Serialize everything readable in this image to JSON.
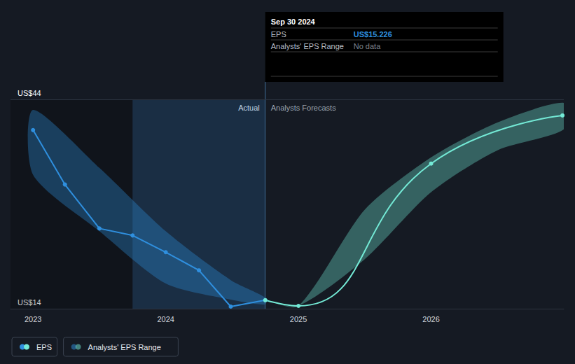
{
  "chart_data": {
    "type": "line",
    "xlim": [
      2022.83,
      2027.0
    ],
    "ylim": [
      14,
      44
    ],
    "xticks": [
      2023,
      2024,
      2025,
      2026
    ],
    "yticks": [
      {
        "value": 14,
        "label": "US$14"
      },
      {
        "value": 44,
        "label": "US$44"
      }
    ],
    "grid": true,
    "legend": "lower left",
    "series": [
      {
        "name": "EPS",
        "type": "line",
        "color": "#2f8fde",
        "marker": "circle",
        "x": [
          2023.0,
          2023.24,
          2023.5,
          2023.75,
          2024.0,
          2024.25,
          2024.49,
          2024.75
        ],
        "values": [
          39.6,
          31.8,
          25.5,
          24.5,
          22.1,
          19.5,
          14.3,
          15.226
        ]
      },
      {
        "name": "EPS",
        "type": "line",
        "color": "#74ead6",
        "marker": "circle",
        "x": [
          2024.75,
          2025.0,
          2026.0,
          2026.99
        ],
        "values": [
          15.226,
          14.4,
          34.8,
          41.7
        ]
      }
    ],
    "ranges": [
      {
        "name": "Analysts' EPS Range",
        "color": "#2f8fde",
        "x": [
          2023.0,
          2023.5,
          2024.0,
          2024.49,
          2024.75
        ],
        "low": [
          33.2,
          25.1,
          17.6,
          15.3,
          14.6
        ],
        "high": [
          42.5,
          34.2,
          25.1,
          18.1,
          15.6
        ]
      },
      {
        "name": "Analysts' EPS Range",
        "color": "#74ead6",
        "x": [
          2024.75,
          2025.0,
          2025.5,
          2026.0,
          2026.5,
          2027.0
        ],
        "low": [
          15.226,
          14.4,
          21.1,
          30.7,
          36.7,
          39.7
        ],
        "high": [
          15.226,
          14.4,
          28.2,
          35.7,
          40.7,
          43.5
        ]
      }
    ],
    "highlight": [
      2023.75,
      2024.75
    ],
    "divider": 2024.75,
    "annotations": [
      "Actual",
      "Analysts Forecasts"
    ],
    "tooltip": {
      "title": "Sep 30 2024",
      "rows": [
        [
          "EPS",
          "US$15.226"
        ],
        [
          "Analysts' EPS Range",
          "No data"
        ]
      ]
    }
  }
}
